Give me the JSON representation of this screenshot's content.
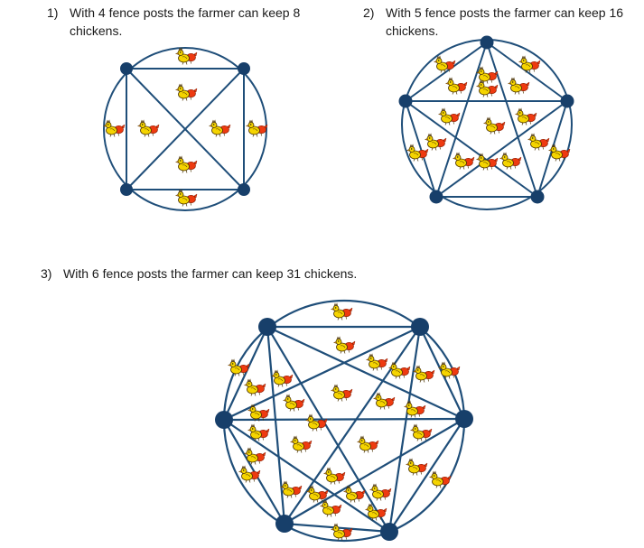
{
  "statements": [
    {
      "number": "1)",
      "text": "With 4 fence posts the farmer can keep 8 chickens."
    },
    {
      "number": "2)",
      "text": "With 5 fence posts the farmer can keep 16 chickens."
    },
    {
      "number": "3)",
      "text": "With 6 fence posts the farmer can keep 31 chickens."
    }
  ],
  "diagrams": [
    {
      "posts": 4,
      "chickens": 8
    },
    {
      "posts": 5,
      "chickens": 16
    },
    {
      "posts": 6,
      "chickens": 31
    }
  ],
  "colors": {
    "line": "#1f4e79",
    "post": "#173f6a",
    "chicken_body": "#f5d400",
    "rooster_body": "#ee3a10",
    "beak": "#f08a1a",
    "outline": "#4a3200"
  },
  "icon": "chicken-icon"
}
